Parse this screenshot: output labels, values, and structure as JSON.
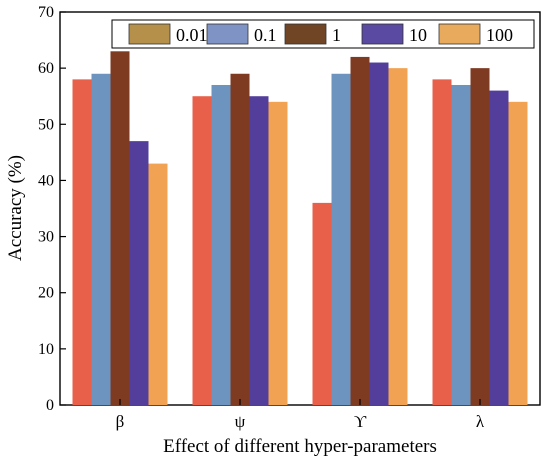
{
  "chart_data": {
    "type": "bar",
    "xlabel": "Effect of different hyper-parameters",
    "ylabel": "Accuracy (%)",
    "ylim": [
      0,
      70
    ],
    "yticks": [
      0,
      10,
      20,
      30,
      40,
      50,
      60,
      70
    ],
    "categories": [
      "β",
      "ψ",
      "ϒ",
      "λ"
    ],
    "grid": false,
    "legend_position": "top",
    "series": [
      {
        "name": "0.01",
        "color": "#e8604a",
        "legend_color": "#b5904a",
        "values": [
          58,
          55,
          36,
          58
        ]
      },
      {
        "name": "0.1",
        "color": "#6d94bf",
        "legend_color": "#7f93c4",
        "values": [
          59,
          57,
          59,
          57
        ]
      },
      {
        "name": "1",
        "color": "#7f3b22",
        "legend_color": "#6f4525",
        "values": [
          63,
          59,
          62,
          60
        ]
      },
      {
        "name": "10",
        "color": "#533f9b",
        "legend_color": "#5a4aa2",
        "values": [
          47,
          55,
          61,
          56
        ]
      },
      {
        "name": "100",
        "color": "#f2a253",
        "legend_color": "#e8aa5c",
        "values": [
          43,
          54,
          60,
          54
        ]
      }
    ]
  }
}
